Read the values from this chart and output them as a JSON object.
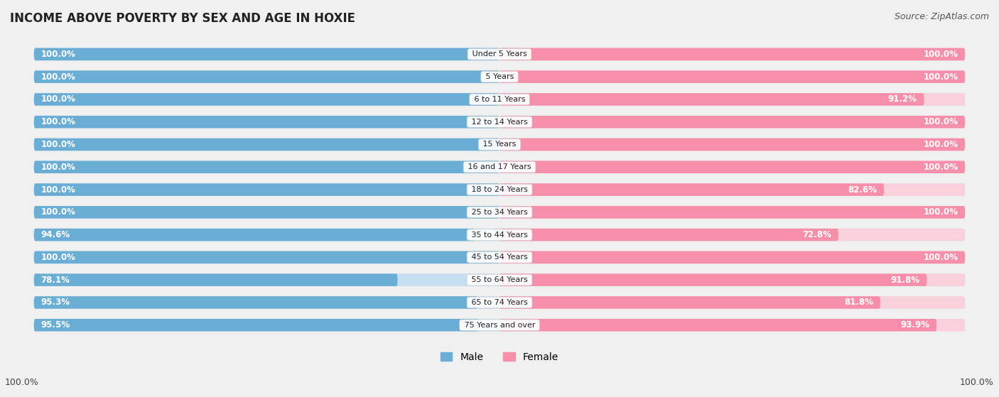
{
  "title": "INCOME ABOVE POVERTY BY SEX AND AGE IN HOXIE",
  "source": "Source: ZipAtlas.com",
  "categories": [
    "Under 5 Years",
    "5 Years",
    "6 to 11 Years",
    "12 to 14 Years",
    "15 Years",
    "16 and 17 Years",
    "18 to 24 Years",
    "25 to 34 Years",
    "35 to 44 Years",
    "45 to 54 Years",
    "55 to 64 Years",
    "65 to 74 Years",
    "75 Years and over"
  ],
  "male_values": [
    100.0,
    100.0,
    100.0,
    100.0,
    100.0,
    100.0,
    100.0,
    100.0,
    94.6,
    100.0,
    78.1,
    95.3,
    95.5
  ],
  "female_values": [
    100.0,
    100.0,
    91.2,
    100.0,
    100.0,
    100.0,
    82.6,
    100.0,
    72.8,
    100.0,
    91.8,
    81.8,
    93.9
  ],
  "male_color": "#6aaed6",
  "female_color": "#f78faa",
  "male_color_light": "#c6dff0",
  "female_color_light": "#fad0dc",
  "male_label": "Male",
  "female_label": "Female",
  "background_color": "#f0f0f0",
  "row_bg_color": "#e8e8e8",
  "title_fontsize": 12,
  "source_fontsize": 9,
  "label_fontsize": 8.5,
  "category_fontsize": 8,
  "footer_male": "100.0%",
  "footer_female": "100.0%"
}
